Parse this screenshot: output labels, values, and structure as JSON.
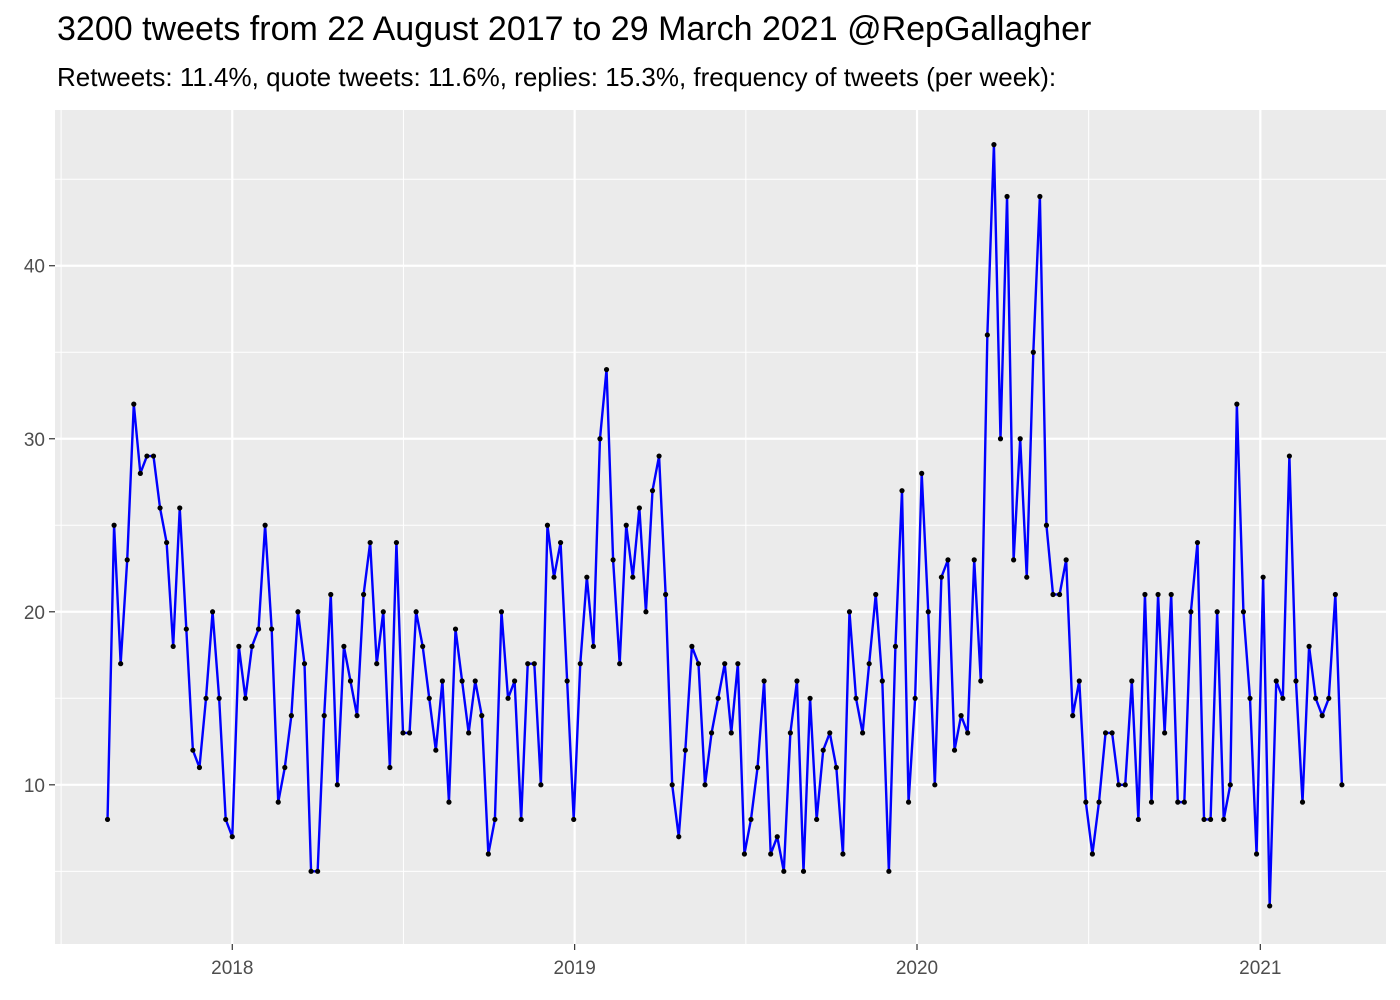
{
  "title": "3200 tweets from 22 August 2017 to 29 March 2021 @RepGallagher",
  "subtitle": "Retweets: 11.4%, quote tweets: 11.6%, replies: 15.3%, frequency of tweets (per week):",
  "colors": {
    "panel": "#ebebeb",
    "grid": "#ffffff",
    "line": "#0000ff",
    "point": "#000000"
  },
  "chart_data": {
    "type": "line",
    "title": "3200 tweets from 22 August 2017 to 29 March 2021 @RepGallagher",
    "subtitle": "Retweets: 11.4%, quote tweets: 11.6%, replies: 15.3%, frequency of tweets (per week):",
    "xlabel": "",
    "ylabel": "",
    "x_type": "date",
    "xlim": [
      "2017-06-26",
      "2021-05-15"
    ],
    "ylim": [
      0.8,
      49.0
    ],
    "x_ticks": [
      "2018-01-01",
      "2019-01-01",
      "2020-01-01",
      "2021-01-01"
    ],
    "x_tick_labels": [
      "2018",
      "2019",
      "2020",
      "2021"
    ],
    "y_ticks": [
      10,
      20,
      30,
      40
    ],
    "grid": true,
    "legend": "none",
    "series": [
      {
        "x": [
          "2017-08-21",
          "2017-08-28",
          "2017-09-04",
          "2017-09-11",
          "2017-09-18",
          "2017-09-25",
          "2017-10-02",
          "2017-10-09",
          "2017-10-16",
          "2017-10-23",
          "2017-10-30",
          "2017-11-06",
          "2017-11-13",
          "2017-11-20",
          "2017-11-27",
          "2017-12-04",
          "2017-12-11",
          "2017-12-18",
          "2017-12-25",
          "2018-01-01",
          "2018-01-08",
          "2018-01-15",
          "2018-01-22",
          "2018-01-29",
          "2018-02-05",
          "2018-02-12",
          "2018-02-19",
          "2018-02-26",
          "2018-03-05",
          "2018-03-12",
          "2018-03-19",
          "2018-03-26",
          "2018-04-02",
          "2018-04-09",
          "2018-04-16",
          "2018-04-23",
          "2018-04-30",
          "2018-05-07",
          "2018-05-14",
          "2018-05-21",
          "2018-05-28",
          "2018-06-04",
          "2018-06-11",
          "2018-06-18",
          "2018-06-25",
          "2018-07-02",
          "2018-07-09",
          "2018-07-16",
          "2018-07-23",
          "2018-07-30",
          "2018-08-06",
          "2018-08-13",
          "2018-08-20",
          "2018-08-27",
          "2018-09-03",
          "2018-09-10",
          "2018-09-17",
          "2018-09-24",
          "2018-10-01",
          "2018-10-08",
          "2018-10-15",
          "2018-10-22",
          "2018-10-29",
          "2018-11-05",
          "2018-11-12",
          "2018-11-19",
          "2018-11-26",
          "2018-12-03",
          "2018-12-10",
          "2018-12-17",
          "2018-12-24",
          "2018-12-31",
          "2019-01-07",
          "2019-01-14",
          "2019-01-21",
          "2019-01-28",
          "2019-02-04",
          "2019-02-11",
          "2019-02-18",
          "2019-02-25",
          "2019-03-04",
          "2019-03-11",
          "2019-03-18",
          "2019-03-25",
          "2019-04-01",
          "2019-04-08",
          "2019-04-15",
          "2019-04-22",
          "2019-04-29",
          "2019-05-06",
          "2019-05-13",
          "2019-05-20",
          "2019-05-27",
          "2019-06-03",
          "2019-06-10",
          "2019-06-17",
          "2019-06-24",
          "2019-07-01",
          "2019-07-08",
          "2019-07-15",
          "2019-07-22",
          "2019-07-29",
          "2019-08-05",
          "2019-08-12",
          "2019-08-19",
          "2019-08-26",
          "2019-09-02",
          "2019-09-09",
          "2019-09-16",
          "2019-09-23",
          "2019-09-30",
          "2019-10-07",
          "2019-10-14",
          "2019-10-21",
          "2019-10-28",
          "2019-11-04",
          "2019-11-11",
          "2019-11-18",
          "2019-11-25",
          "2019-12-02",
          "2019-12-09",
          "2019-12-16",
          "2019-12-23",
          "2019-12-30",
          "2020-01-06",
          "2020-01-13",
          "2020-01-20",
          "2020-01-27",
          "2020-02-03",
          "2020-02-10",
          "2020-02-17",
          "2020-02-24",
          "2020-03-02",
          "2020-03-09",
          "2020-03-16",
          "2020-03-23",
          "2020-03-30",
          "2020-04-06",
          "2020-04-13",
          "2020-04-20",
          "2020-04-27",
          "2020-05-04",
          "2020-05-11",
          "2020-05-18",
          "2020-05-25",
          "2020-06-01",
          "2020-06-08",
          "2020-06-15",
          "2020-06-22",
          "2020-06-29",
          "2020-07-06",
          "2020-07-13",
          "2020-07-20",
          "2020-07-27",
          "2020-08-03",
          "2020-08-10",
          "2020-08-17",
          "2020-08-24",
          "2020-08-31",
          "2020-09-07",
          "2020-09-14",
          "2020-09-21",
          "2020-09-28",
          "2020-10-05",
          "2020-10-12",
          "2020-10-19",
          "2020-10-26",
          "2020-11-02",
          "2020-11-09",
          "2020-11-16",
          "2020-11-23",
          "2020-11-30",
          "2020-12-07",
          "2020-12-14",
          "2020-12-21",
          "2020-12-28",
          "2021-01-04",
          "2021-01-11",
          "2021-01-18",
          "2021-01-25",
          "2021-02-01",
          "2021-02-08",
          "2021-02-15",
          "2021-02-22",
          "2021-03-01",
          "2021-03-08",
          "2021-03-15",
          "2021-03-22",
          "2021-03-29"
        ],
        "y": [
          8,
          25,
          17,
          23,
          32,
          28,
          29,
          29,
          26,
          24,
          18,
          26,
          19,
          12,
          11,
          15,
          20,
          15,
          8,
          7,
          18,
          15,
          18,
          19,
          25,
          19,
          9,
          11,
          14,
          20,
          17,
          5,
          5,
          14,
          21,
          10,
          18,
          16,
          14,
          21,
          24,
          17,
          20,
          11,
          24,
          13,
          13,
          20,
          18,
          15,
          12,
          16,
          9,
          19,
          16,
          13,
          16,
          14,
          6,
          8,
          20,
          15,
          16,
          8,
          17,
          17,
          10,
          25,
          22,
          24,
          16,
          8,
          17,
          22,
          18,
          30,
          34,
          23,
          17,
          25,
          22,
          26,
          20,
          27,
          29,
          21,
          10,
          7,
          12,
          18,
          17,
          10,
          13,
          15,
          17,
          13,
          17,
          6,
          8,
          11,
          16,
          6,
          7,
          5,
          13,
          16,
          5,
          15,
          8,
          12,
          13,
          11,
          6,
          20,
          15,
          13,
          17,
          21,
          16,
          5,
          18,
          27,
          9,
          15,
          28,
          20,
          10,
          22,
          23,
          12,
          14,
          13,
          23,
          16,
          36,
          47,
          30,
          44,
          23,
          30,
          22,
          35,
          44,
          25,
          21,
          21,
          23,
          14,
          16,
          9,
          6,
          9,
          13,
          13,
          10,
          10,
          16,
          8,
          21,
          9,
          21,
          13,
          21,
          9,
          9,
          20,
          24,
          8,
          8,
          20,
          8,
          10,
          32,
          20,
          15,
          6,
          22,
          3,
          16,
          15,
          29,
          16,
          9,
          18,
          15,
          14,
          15,
          21,
          10
        ]
      }
    ]
  }
}
